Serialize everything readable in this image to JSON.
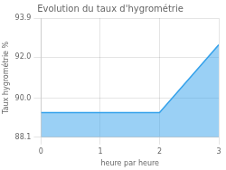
{
  "chart_data": {
    "type": "line",
    "title": "Evolution du taux d'hygrométrie",
    "xlabel": "heure par heure",
    "ylabel": "Taux hygrométrie %",
    "x": [
      0,
      1,
      2,
      3
    ],
    "values": [
      89.3,
      89.3,
      89.3,
      92.6
    ],
    "xlim": [
      0,
      3
    ],
    "xticks": [
      0,
      1,
      2,
      3
    ],
    "ylim": [
      88.1,
      93.9
    ],
    "yticks": [
      88.1,
      {
        "value": 90.0,
        "label": "90.0"
      },
      {
        "value": 92.0,
        "label": "92.0"
      },
      93.9
    ],
    "grid": true
  }
}
